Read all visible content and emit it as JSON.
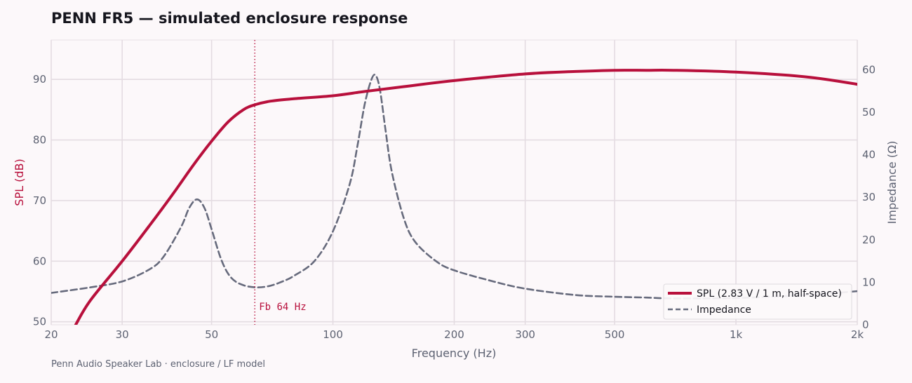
{
  "title": "PENN FR5 — simulated enclosure response",
  "footer": "Penn Audio Speaker Lab · enclosure / LF model",
  "colors": {
    "spl": "#b8103c",
    "impedance": "#666a7c",
    "grid": "#e4dce2",
    "text": "#5d6272",
    "background": "#fcf8fa"
  },
  "chart_data": {
    "type": "line",
    "title": "PENN FR5 — simulated enclosure response",
    "xlabel": "Frequency  (Hz)",
    "ylabel": "SPL  (dB)",
    "y2label": "Impedance  (Ω)",
    "xscale": "log",
    "xlim": [
      20,
      2000
    ],
    "ylim": [
      49.5,
      96.5
    ],
    "y2lim": [
      0,
      67
    ],
    "x_ticks": [
      20,
      30,
      50,
      100,
      200,
      300,
      500,
      1000,
      2000
    ],
    "x_tick_labels": [
      "20",
      "30",
      "50",
      "100",
      "200",
      "300",
      "500",
      "1k",
      "2k"
    ],
    "y_ticks": [
      50,
      60,
      70,
      80,
      90
    ],
    "y2_ticks": [
      0,
      10,
      20,
      30,
      40,
      50,
      60
    ],
    "grid": true,
    "legend_position": "lower-right",
    "series": [
      {
        "name": "SPL  (2.83 V / 1 m, half-space)",
        "axis": "left",
        "style": "solid",
        "x": [
          23,
          25,
          30,
          35,
          40,
          45,
          50,
          55,
          60,
          64,
          70,
          80,
          100,
          120,
          150,
          200,
          300,
          400,
          500,
          600,
          700,
          1000,
          1500,
          2000
        ],
        "y": [
          49.5,
          53.5,
          60.0,
          65.8,
          71.0,
          75.8,
          79.8,
          83.0,
          85.0,
          85.8,
          86.4,
          86.8,
          87.3,
          88.0,
          88.8,
          89.8,
          90.9,
          91.3,
          91.5,
          91.5,
          91.5,
          91.2,
          90.4,
          89.2
        ]
      },
      {
        "name": "Impedance",
        "axis": "right",
        "style": "dashed",
        "x": [
          20,
          25,
          30,
          35,
          38,
          42,
          44,
          46,
          48,
          50,
          53,
          56,
          60,
          65,
          70,
          75,
          80,
          90,
          100,
          110,
          115,
          120,
          125,
          128,
          131,
          135,
          140,
          150,
          160,
          180,
          200,
          250,
          300,
          400,
          500,
          600,
          700,
          1000,
          1500,
          2000
        ],
        "y": [
          7.5,
          8.8,
          10.2,
          13.0,
          16.0,
          23.0,
          27.5,
          29.5,
          27.5,
          22.5,
          15.0,
          11.0,
          9.3,
          8.8,
          9.2,
          10.2,
          11.5,
          15.0,
          22.0,
          33.0,
          42.0,
          52.0,
          58.0,
          58.5,
          55.0,
          46.0,
          36.0,
          25.0,
          19.5,
          15.0,
          12.8,
          10.2,
          8.5,
          7.0,
          6.6,
          6.4,
          6.2,
          6.3,
          7.0,
          7.9
        ]
      }
    ],
    "annotations": [
      {
        "x": 64,
        "label": "Fb 64 Hz",
        "style": "dotted vertical line"
      }
    ]
  }
}
